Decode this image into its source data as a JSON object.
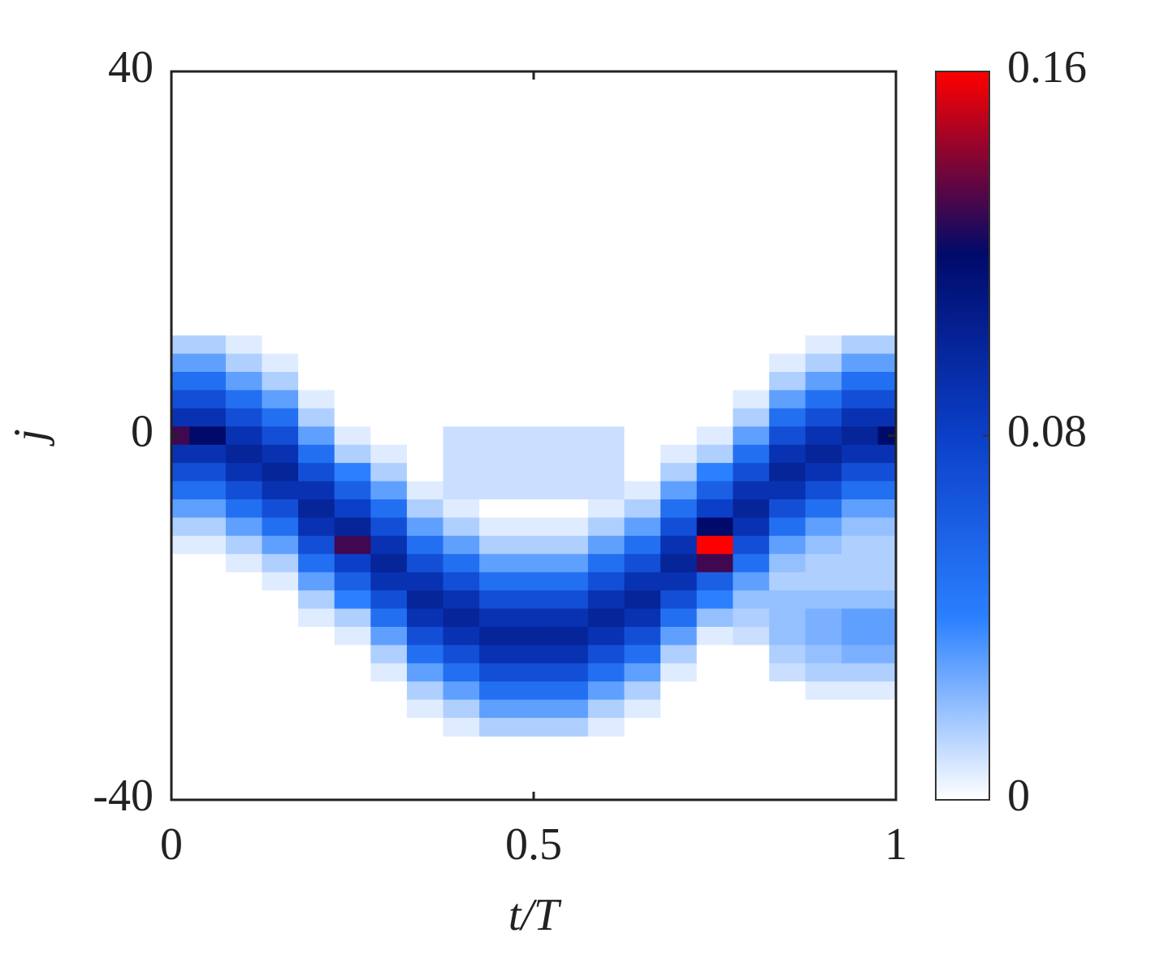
{
  "chart_data": {
    "type": "heatmap",
    "xlabel": "t/T",
    "ylabel": "j",
    "xlim": [
      0,
      1
    ],
    "xticks": [
      0,
      0.5,
      1
    ],
    "ylim": [
      -40,
      40
    ],
    "yticks": [
      40,
      0,
      -40
    ],
    "clim": [
      0,
      0.16
    ],
    "cticks": [
      0,
      0.08,
      0.16
    ],
    "colormap": [
      "#ffffff",
      "#2a80ff",
      "#0b3fc8",
      "#000a6a",
      "#ff0000"
    ],
    "x": [
      0,
      0.05,
      0.1,
      0.15,
      0.2,
      0.25,
      0.3,
      0.35,
      0.4,
      0.45,
      0.5,
      0.55,
      0.6,
      0.65,
      0.7,
      0.75,
      0.8,
      0.85,
      0.9,
      0.95,
      1
    ],
    "y": [
      10,
      8,
      6,
      4,
      2,
      0,
      -2,
      -4,
      -6,
      -8,
      -10,
      -12,
      -14,
      -16,
      -18,
      -20,
      -22,
      -24,
      -26,
      -28,
      -30,
      -32
    ],
    "z": [
      [
        0.015,
        0.015,
        0.006,
        0,
        0,
        0,
        0,
        0,
        0,
        0,
        0,
        0,
        0,
        0,
        0,
        0,
        0,
        0,
        0.006,
        0.015,
        0.015
      ],
      [
        0.03,
        0.03,
        0.015,
        0.006,
        0,
        0,
        0,
        0,
        0,
        0,
        0,
        0,
        0,
        0,
        0,
        0,
        0,
        0.006,
        0.015,
        0.03,
        0.03
      ],
      [
        0.05,
        0.05,
        0.03,
        0.015,
        0,
        0,
        0,
        0,
        0,
        0,
        0,
        0,
        0,
        0,
        0,
        0,
        0,
        0.015,
        0.03,
        0.05,
        0.05
      ],
      [
        0.07,
        0.07,
        0.05,
        0.03,
        0.006,
        0,
        0,
        0,
        0,
        0,
        0,
        0,
        0,
        0,
        0,
        0,
        0.006,
        0.03,
        0.05,
        0.07,
        0.07
      ],
      [
        0.09,
        0.09,
        0.07,
        0.05,
        0.015,
        0,
        0,
        0,
        0,
        0,
        0,
        0,
        0,
        0,
        0,
        0,
        0.015,
        0.05,
        0.07,
        0.09,
        0.09
      ],
      [
        0.13,
        0.12,
        0.09,
        0.07,
        0.03,
        0.006,
        0,
        0,
        0.01,
        0.01,
        0.01,
        0.01,
        0.01,
        0,
        0,
        0.006,
        0.03,
        0.07,
        0.09,
        0.1,
        0.12
      ],
      [
        0.09,
        0.09,
        0.1,
        0.09,
        0.05,
        0.015,
        0.006,
        0,
        0.01,
        0.01,
        0.01,
        0.01,
        0.01,
        0,
        0.006,
        0.015,
        0.05,
        0.09,
        0.1,
        0.09,
        0.09
      ],
      [
        0.07,
        0.07,
        0.09,
        0.1,
        0.07,
        0.04,
        0.015,
        0,
        0.01,
        0.01,
        0.01,
        0.01,
        0.01,
        0,
        0.015,
        0.04,
        0.07,
        0.1,
        0.09,
        0.07,
        0.07
      ],
      [
        0.05,
        0.05,
        0.07,
        0.09,
        0.09,
        0.06,
        0.03,
        0.006,
        0.01,
        0.01,
        0.01,
        0.01,
        0.01,
        0.006,
        0.03,
        0.06,
        0.09,
        0.09,
        0.07,
        0.05,
        0.05
      ],
      [
        0.03,
        0.03,
        0.05,
        0.07,
        0.1,
        0.08,
        0.05,
        0.015,
        0.006,
        0,
        0,
        0,
        0.006,
        0.015,
        0.05,
        0.08,
        0.1,
        0.07,
        0.05,
        0.03,
        0.03
      ],
      [
        0.015,
        0.015,
        0.03,
        0.05,
        0.09,
        0.1,
        0.07,
        0.03,
        0.015,
        0.006,
        0.006,
        0.006,
        0.015,
        0.03,
        0.07,
        0.12,
        0.09,
        0.05,
        0.03,
        0.02,
        0.02
      ],
      [
        0.006,
        0.006,
        0.015,
        0.03,
        0.07,
        0.13,
        0.09,
        0.05,
        0.03,
        0.015,
        0.015,
        0.015,
        0.03,
        0.05,
        0.09,
        0.16,
        0.07,
        0.03,
        0.02,
        0.015,
        0.015
      ],
      [
        0,
        0,
        0.006,
        0.015,
        0.05,
        0.08,
        0.1,
        0.07,
        0.05,
        0.03,
        0.03,
        0.03,
        0.05,
        0.07,
        0.1,
        0.13,
        0.05,
        0.02,
        0.015,
        0.015,
        0.015
      ],
      [
        0,
        0,
        0,
        0.006,
        0.03,
        0.06,
        0.09,
        0.09,
        0.07,
        0.05,
        0.05,
        0.05,
        0.07,
        0.09,
        0.09,
        0.06,
        0.03,
        0.015,
        0.015,
        0.015,
        0.015
      ],
      [
        0,
        0,
        0,
        0,
        0.015,
        0.04,
        0.07,
        0.1,
        0.09,
        0.07,
        0.07,
        0.07,
        0.09,
        0.1,
        0.07,
        0.04,
        0.02,
        0.02,
        0.02,
        0.02,
        0.02
      ],
      [
        0,
        0,
        0,
        0,
        0.006,
        0.015,
        0.05,
        0.09,
        0.1,
        0.09,
        0.09,
        0.09,
        0.1,
        0.09,
        0.05,
        0.02,
        0.015,
        0.02,
        0.025,
        0.03,
        0.03
      ],
      [
        0,
        0,
        0,
        0,
        0,
        0.006,
        0.03,
        0.07,
        0.09,
        0.1,
        0.1,
        0.1,
        0.09,
        0.07,
        0.03,
        0.006,
        0.01,
        0.02,
        0.025,
        0.03,
        0.03
      ],
      [
        0,
        0,
        0,
        0,
        0,
        0,
        0.015,
        0.05,
        0.07,
        0.09,
        0.09,
        0.09,
        0.07,
        0.05,
        0.015,
        0,
        0,
        0.015,
        0.02,
        0.025,
        0.025
      ],
      [
        0,
        0,
        0,
        0,
        0,
        0,
        0.006,
        0.03,
        0.05,
        0.07,
        0.07,
        0.07,
        0.05,
        0.03,
        0.006,
        0,
        0,
        0.01,
        0.015,
        0.015,
        0.015
      ],
      [
        0,
        0,
        0,
        0,
        0,
        0,
        0,
        0.015,
        0.03,
        0.05,
        0.05,
        0.05,
        0.03,
        0.015,
        0,
        0,
        0,
        0,
        0.006,
        0.006,
        0.006
      ],
      [
        0,
        0,
        0,
        0,
        0,
        0,
        0,
        0.006,
        0.015,
        0.03,
        0.03,
        0.03,
        0.015,
        0.006,
        0,
        0,
        0,
        0,
        0,
        0,
        0
      ],
      [
        0,
        0,
        0,
        0,
        0,
        0,
        0,
        0,
        0.006,
        0.015,
        0.015,
        0.015,
        0.006,
        0,
        0,
        0,
        0,
        0,
        0,
        0,
        0
      ]
    ]
  }
}
